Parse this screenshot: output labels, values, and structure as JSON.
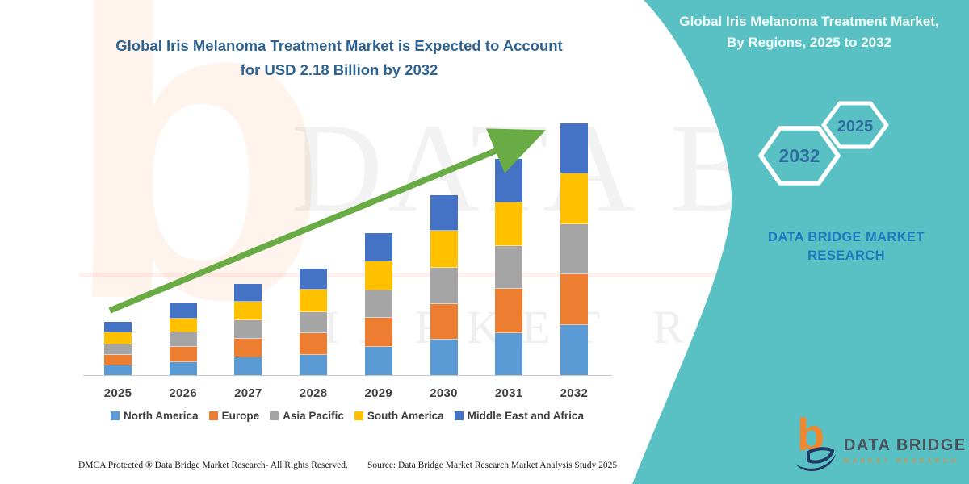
{
  "title": {
    "line1": "Global Iris Melanoma Treatment Market is Expected to Account",
    "line2": "for USD 2.18 Billion by 2032"
  },
  "right_panel": {
    "heading": "Global Iris Melanoma Treatment Market, By Regions, 2025 to 2032",
    "hexagons": {
      "large": "2032",
      "small": "2025"
    },
    "brand_caption": "DATA BRIDGE MARKET RESEARCH",
    "accent_teal": "#59C1C3"
  },
  "chart_data": {
    "type": "bar",
    "stacked": true,
    "title": "Global Iris Melanoma Treatment Market is Expected to Account for USD 2.18 Billion by 2032",
    "unit": "USD Billion",
    "categories": [
      "2025",
      "2026",
      "2027",
      "2028",
      "2029",
      "2030",
      "2031",
      "2032"
    ],
    "series": [
      {
        "name": "North America",
        "color": "#5B9BD5",
        "values": [
          0.09,
          0.12,
          0.16,
          0.18,
          0.25,
          0.31,
          0.37,
          0.44
        ]
      },
      {
        "name": "Europe",
        "color": "#ED7D31",
        "values": [
          0.09,
          0.13,
          0.16,
          0.19,
          0.25,
          0.31,
          0.38,
          0.44
        ]
      },
      {
        "name": "Asia Pacific",
        "color": "#A5A5A5",
        "values": [
          0.09,
          0.12,
          0.16,
          0.18,
          0.24,
          0.31,
          0.37,
          0.43
        ]
      },
      {
        "name": "South America",
        "color": "#FFC000",
        "values": [
          0.1,
          0.12,
          0.16,
          0.19,
          0.25,
          0.32,
          0.38,
          0.44
        ]
      },
      {
        "name": "Middle East and Africa",
        "color": "#4472C4",
        "values": [
          0.09,
          0.13,
          0.15,
          0.18,
          0.24,
          0.31,
          0.37,
          0.43
        ]
      }
    ],
    "totals": [
      0.46,
      0.62,
      0.79,
      0.92,
      1.23,
      1.56,
      1.87,
      2.18
    ],
    "ylim": [
      0,
      2.3
    ],
    "gridlines": false,
    "legend_position": "bottom",
    "trend_arrow": {
      "present": true,
      "color": "#69AB45"
    }
  },
  "watermarks": {
    "letter": "b",
    "line1": "DATA BRIDGE",
    "line2": "MARKET RESEARCH"
  },
  "footer": {
    "dmca": "DMCA Protected ® Data Bridge Market Research-  All Rights Reserved.",
    "source": "Source: Data Bridge Market Research  Market Analysis Study 2025"
  },
  "brand_footer": {
    "icon_letter": "b",
    "name": "DATA BRIDGE",
    "subtitle": "MARKET RESEARCH"
  }
}
